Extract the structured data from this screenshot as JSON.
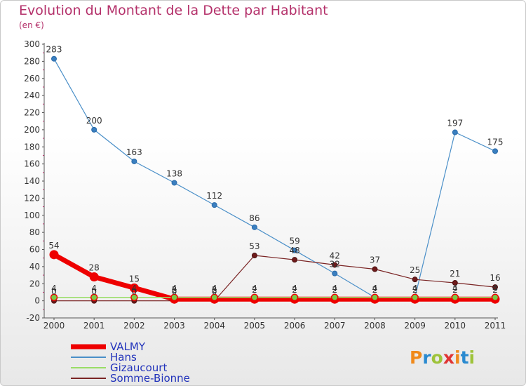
{
  "chart_data": {
    "type": "line",
    "title": "Evolution du Montant de la Dette par Habitant",
    "subtitle": "(en €)",
    "x": [
      "2000",
      "2001",
      "2002",
      "2003",
      "2004",
      "2005",
      "2006",
      "2007",
      "2008",
      "2009",
      "2010",
      "2011"
    ],
    "ylim": [
      -20,
      300
    ],
    "yticks": [
      -20,
      0,
      20,
      40,
      60,
      80,
      100,
      120,
      140,
      160,
      180,
      200,
      220,
      240,
      260,
      280,
      300
    ],
    "grid": false,
    "legend_position": "bottom-left",
    "series": [
      {
        "name": "VALMY",
        "color": "#ee0000",
        "values": [
          54,
          28,
          15,
          2,
          2,
          2,
          2,
          2,
          2,
          2,
          2,
          2
        ],
        "labels": [
          "54",
          "28",
          "15",
          "2",
          "2",
          "2",
          "2",
          "2",
          "2",
          "2",
          "2",
          "2"
        ]
      },
      {
        "name": "Hans",
        "color": "#4a8fc8",
        "values": [
          283,
          200,
          163,
          138,
          112,
          86,
          59,
          32,
          4,
          4,
          197,
          175
        ],
        "labels": [
          "283",
          "200",
          "163",
          "138",
          "112",
          "86",
          "59",
          "32",
          "4",
          "4",
          "197",
          "175"
        ]
      },
      {
        "name": "Gizaucourt",
        "color": "#99dd66",
        "values": [
          4,
          4,
          4,
          4,
          4,
          4,
          4,
          4,
          4,
          4,
          4,
          4
        ],
        "labels": [
          "4",
          "4",
          "4",
          "4",
          "4",
          "4",
          "4",
          "4",
          "4",
          "4",
          "4",
          "4"
        ]
      },
      {
        "name": "Somme-Bionne",
        "color": "#7a2424",
        "values": [
          0,
          0,
          0,
          0,
          0,
          53,
          48,
          42,
          37,
          25,
          21,
          16
        ],
        "labels": [
          "0",
          "0",
          "0",
          "0",
          "0",
          "53",
          "48",
          "42",
          "37",
          "25",
          "21",
          "16"
        ]
      }
    ]
  },
  "legend": {
    "items": [
      {
        "label": "VALMY",
        "color": "#ee0000"
      },
      {
        "label": "Hans",
        "color": "#4a8fc8"
      },
      {
        "label": "Gizaucourt",
        "color": "#99dd66"
      },
      {
        "label": "Somme-Bionne",
        "color": "#7a2424"
      }
    ]
  },
  "logo": {
    "text": "Proxiti"
  }
}
